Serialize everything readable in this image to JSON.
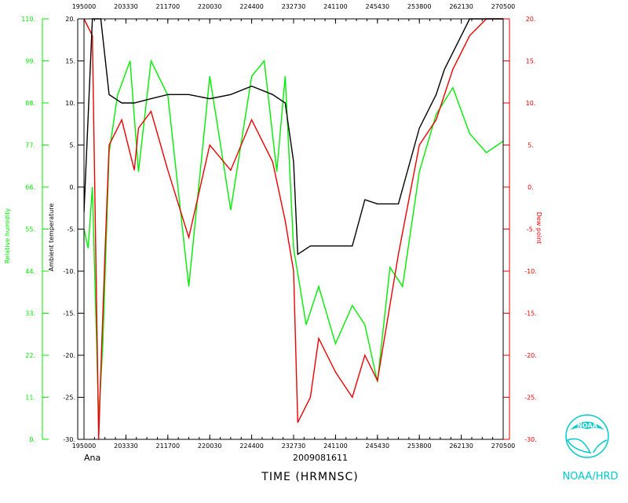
{
  "chart_data": {
    "type": "line",
    "x_tick_labels": [
      "195000",
      "203330",
      "211700",
      "220030",
      "224400",
      "232730",
      "241100",
      "245430",
      "253800",
      "262130",
      "270500"
    ],
    "xlabel": "TIME (HRMNSC)",
    "date_label": "2009081611",
    "storm_label": "Ana",
    "left_axis_temp": {
      "label": "Ambient temperature",
      "ticks": [
        "20.",
        "15.",
        "10.",
        "5.",
        "0.",
        "-5.",
        "-10.",
        "-15.",
        "-20.",
        "-25.",
        "-30."
      ],
      "ylim": [
        -30,
        20
      ]
    },
    "left_axis_rh": {
      "label": "Relative humidity",
      "ticks": [
        "110.",
        "99.",
        "88.",
        "77.",
        "66.",
        "55.",
        "44.",
        "33.",
        "22.",
        "11.",
        "0."
      ],
      "ylim": [
        0,
        110
      ]
    },
    "right_axis_dew": {
      "label": "Dew point",
      "ticks": [
        "20.",
        "15.",
        "10.",
        "5.",
        "0.",
        "-5.",
        "-10.",
        "-15.",
        "-20.",
        "-25.",
        "-30."
      ],
      "ylim": [
        -30,
        20
      ]
    },
    "series": [
      {
        "name": "Ambient temperature",
        "color": "#000000",
        "x": [
          0,
          0.2,
          0.4,
          0.6,
          0.9,
          1.2,
          1.6,
          2,
          2.5,
          3,
          3.5,
          4,
          4.5,
          4.8,
          5,
          5.1,
          5.4,
          5.9,
          6,
          6.4,
          6.7,
          7,
          7.5,
          8,
          8.4,
          8.6,
          8.8,
          9,
          9.2,
          9.4,
          9.6,
          9.8,
          10
        ],
        "y": [
          -3,
          20,
          20,
          11,
          10,
          10,
          10.5,
          11,
          11,
          10.5,
          11,
          12,
          11,
          10,
          3,
          -8,
          -7,
          -7,
          -7,
          -7,
          -1.5,
          -2,
          -2,
          7,
          11,
          14,
          16,
          18,
          20,
          20,
          20,
          20,
          20
        ]
      },
      {
        "name": "Dew point",
        "color": "#ee0000",
        "x": [
          0,
          0.2,
          0.35,
          0.4,
          0.5,
          0.6,
          0.9,
          1.2,
          1.3,
          1.6,
          2,
          2.5,
          3,
          3.5,
          4,
          4.5,
          4.8,
          5,
          5.1,
          5.4,
          5.6,
          6,
          6.4,
          6.7,
          7,
          7.5,
          8,
          8.4,
          8.8,
          9.2,
          9.6,
          10
        ],
        "y": [
          20,
          18,
          -30,
          -22,
          -8,
          5,
          8,
          2,
          7,
          9,
          2,
          -6,
          5,
          2,
          8,
          3,
          -4,
          -10,
          -28,
          -25,
          -18,
          -22,
          -25,
          -20,
          -23,
          -8,
          5,
          8,
          14,
          18,
          20,
          20
        ]
      },
      {
        "name": "Relative humidity",
        "color": "#00ee00",
        "x": [
          0,
          0.1,
          0.2,
          0.35,
          0.45,
          0.6,
          0.8,
          1.1,
          1.3,
          1.6,
          2,
          2.5,
          3,
          3.5,
          4,
          4.3,
          4.6,
          4.8,
          5,
          5.3,
          5.6,
          6,
          6.4,
          6.7,
          7,
          7.3,
          7.6,
          8,
          8.4,
          8.8,
          9.2,
          9.6,
          10
        ],
        "y": [
          55,
          50,
          66,
          5,
          25,
          75,
          90,
          99,
          70,
          99,
          90,
          40,
          95,
          60,
          95,
          99,
          70,
          95,
          50,
          30,
          40,
          25,
          35,
          30,
          15,
          45,
          40,
          70,
          85,
          92,
          80,
          75,
          78
        ]
      }
    ]
  },
  "logo": {
    "agency": "NOAA",
    "caption": "NOAA/HRD",
    "color": "#00cccc"
  }
}
